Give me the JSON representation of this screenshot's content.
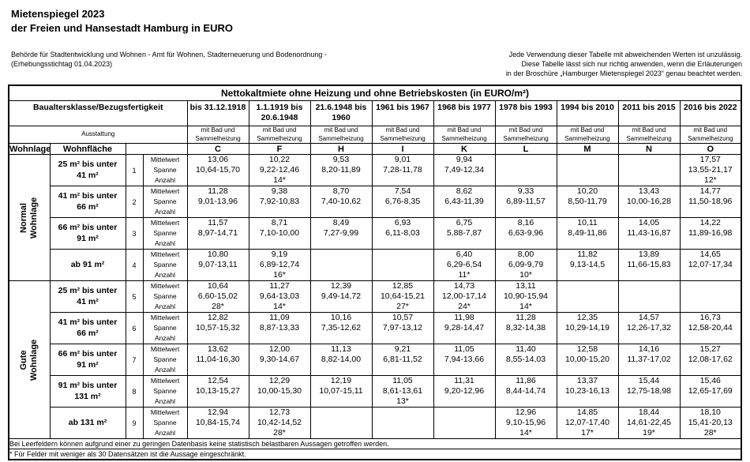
{
  "header": {
    "title_line1": "Mietenspiegel 2023",
    "title_line2": "der Freien und Hansestadt Hamburg in EURO",
    "authority_line1": "Behörde für Stadtentwicklung und Wohnen - Amt für Wohnen, Stadterneuerung und Bodenordnung -",
    "authority_line2": "(Erhebungsstichtag 01.04.2023)",
    "disclaimer_line1": "Jede Verwendung dieser Tabelle mit abweichenden Werten ist unzulässig.",
    "disclaimer_line2": "Diese Tabelle lässt sich nur richtig anwenden, wenn die Erläuterungen",
    "disclaimer_line3": "in der Broschüre „Hamburger Mietenspiegel 2023“ genau beachtet werden."
  },
  "table": {
    "title": "Nettokaltmiete ohne Heizung und ohne Betriebskosten (in EURO/m²)",
    "col_group_label": "Baualtersklasse/Bezugsfertigkeit",
    "equipment_label": "Ausstattung",
    "wohnlage_label": "Wohnlage",
    "flaeche_label": "Wohnfläche",
    "equipment_value": "mit Bad und Sammelheizung",
    "row_stat_labels": [
      "Mittelwert",
      "Spanne",
      "Anzahl"
    ],
    "columns": [
      {
        "letter": "C",
        "period": "bis 31.12.1918"
      },
      {
        "letter": "F",
        "period": "1.1.1919 bis 20.6.1948"
      },
      {
        "letter": "H",
        "period": "21.6.1948 bis 1960"
      },
      {
        "letter": "I",
        "period": "1961 bis 1967"
      },
      {
        "letter": "K",
        "period": "1968 bis 1977"
      },
      {
        "letter": "L",
        "period": "1978 bis 1993"
      },
      {
        "letter": "M",
        "period": "1994 bis 2010"
      },
      {
        "letter": "N",
        "period": "2011 bis 2015"
      },
      {
        "letter": "O",
        "period": "2016 bis 2022"
      }
    ],
    "groups": [
      {
        "label_line1": "Normal",
        "label_line2": "Wohnlage",
        "rows": [
          {
            "flaeche": "25 m² bis unter 41 m²",
            "num": "1",
            "cells": [
              [
                "13,06",
                "10,64-15,70",
                ""
              ],
              [
                "10,22",
                "9,22-12,46",
                "14*"
              ],
              [
                "9,53",
                "8,20-11,89",
                ""
              ],
              [
                "9,01",
                "7,28-11,78",
                ""
              ],
              [
                "9,94",
                "7,49-12,34",
                ""
              ],
              [
                "",
                "",
                ""
              ],
              [
                "",
                "",
                ""
              ],
              [
                "",
                "",
                ""
              ],
              [
                "17,57",
                "13,55-21,17",
                "12*"
              ]
            ]
          },
          {
            "flaeche": "41 m² bis unter 66 m²",
            "num": "2",
            "cells": [
              [
                "11,28",
                "9,01-13,96",
                ""
              ],
              [
                "9,38",
                "7,92-10,83",
                ""
              ],
              [
                "8,70",
                "7,40-10,62",
                ""
              ],
              [
                "7,54",
                "6,76-8,35",
                ""
              ],
              [
                "8,62",
                "6,43-11,39",
                ""
              ],
              [
                "9,33",
                "6,89-11,57",
                ""
              ],
              [
                "10,20",
                "8,50-11,79",
                ""
              ],
              [
                "13,43",
                "10,00-16,28",
                ""
              ],
              [
                "14,77",
                "11,50-18,96",
                ""
              ]
            ]
          },
          {
            "flaeche": "66 m² bis unter 91 m²",
            "num": "3",
            "cells": [
              [
                "11,57",
                "8,97-14,71",
                ""
              ],
              [
                "8,71",
                "7,10-10,00",
                ""
              ],
              [
                "8,49",
                "7,27-9,99",
                ""
              ],
              [
                "6,93",
                "6,11-8,03",
                ""
              ],
              [
                "6,75",
                "5,88-7,87",
                ""
              ],
              [
                "8,16",
                "6,63-9,96",
                ""
              ],
              [
                "10,11",
                "8,49-11,86",
                ""
              ],
              [
                "14,05",
                "11,43-16,87",
                ""
              ],
              [
                "14,22",
                "11,89-16,98",
                ""
              ]
            ]
          },
          {
            "flaeche": "ab 91 m²",
            "num": "4",
            "cells": [
              [
                "10,80",
                "9,07-13,11",
                ""
              ],
              [
                "9,19",
                "6,89-12,74",
                "16*"
              ],
              [
                "",
                "",
                ""
              ],
              [
                "",
                "",
                ""
              ],
              [
                "6,40",
                "6,29-6,54",
                "11*"
              ],
              [
                "8,00",
                "6,09-9,79",
                "10*"
              ],
              [
                "11,82",
                "9,13-14,5",
                ""
              ],
              [
                "13,89",
                "11,66-15,83",
                ""
              ],
              [
                "14,65",
                "12,07-17,34",
                ""
              ]
            ]
          }
        ]
      },
      {
        "label_line1": "Gute",
        "label_line2": "Wohnlage",
        "rows": [
          {
            "flaeche": "25 m² bis unter 41 m²",
            "num": "5",
            "cells": [
              [
                "10,64",
                "6,60-15,02",
                "28*"
              ],
              [
                "11,27",
                "9,64-13,03",
                "14*"
              ],
              [
                "12,39",
                "9,49-14,72",
                ""
              ],
              [
                "12,85",
                "10,64-15,21",
                "27*"
              ],
              [
                "14,73",
                "12,00-17,14",
                "24*"
              ],
              [
                "13,11",
                "10,90-15,94",
                "14*"
              ],
              [
                "",
                "",
                ""
              ],
              [
                "",
                "",
                ""
              ],
              [
                "",
                "",
                ""
              ]
            ]
          },
          {
            "flaeche": "41 m² bis unter 66 m²",
            "num": "6",
            "cells": [
              [
                "12,82",
                "10,57-15,32",
                ""
              ],
              [
                "11,09",
                "8,87-13,33",
                ""
              ],
              [
                "10,16",
                "7,35-12,62",
                ""
              ],
              [
                "10,57",
                "7,97-13,12",
                ""
              ],
              [
                "11,98",
                "9,28-14,47",
                ""
              ],
              [
                "11,28",
                "8,32-14,38",
                ""
              ],
              [
                "12,35",
                "10,29-14,19",
                ""
              ],
              [
                "14,57",
                "12,26-17,32",
                ""
              ],
              [
                "16,73",
                "12,58-20,44",
                ""
              ]
            ]
          },
          {
            "flaeche": "66 m² bis unter 91 m²",
            "num": "7",
            "cells": [
              [
                "13,62",
                "11,04-16,30",
                ""
              ],
              [
                "12,00",
                "9,30-14,67",
                ""
              ],
              [
                "11,13",
                "8,82-14,00",
                ""
              ],
              [
                "9,21",
                "6,81-11,52",
                ""
              ],
              [
                "11,05",
                "7,94-13,66",
                ""
              ],
              [
                "11,40",
                "8,55-14,03",
                ""
              ],
              [
                "12,58",
                "10,00-15,20",
                ""
              ],
              [
                "14,16",
                "11,37-17,02",
                ""
              ],
              [
                "15,27",
                "12,08-17,62",
                ""
              ]
            ]
          },
          {
            "flaeche": "91 m² bis unter 131 m²",
            "num": "8",
            "cells": [
              [
                "12,54",
                "10,13-15,27",
                ""
              ],
              [
                "12,29",
                "10,00-15,30",
                ""
              ],
              [
                "12,19",
                "10,07-15,11",
                ""
              ],
              [
                "11,05",
                "8,61-13,61",
                "13*"
              ],
              [
                "11,31",
                "9,20-12,96",
                ""
              ],
              [
                "11,86",
                "8,44-14,74",
                ""
              ],
              [
                "13,37",
                "10,23-16,13",
                ""
              ],
              [
                "15,44",
                "12,75-18,98",
                ""
              ],
              [
                "15,46",
                "12,65-17,69",
                ""
              ]
            ]
          },
          {
            "flaeche": "ab 131 m²",
            "num": "9",
            "cells": [
              [
                "12,94",
                "10,84-15,74",
                ""
              ],
              [
                "12,73",
                "10,42-14,52",
                "28*"
              ],
              [
                "",
                "",
                ""
              ],
              [
                "",
                "",
                ""
              ],
              [
                "",
                "",
                ""
              ],
              [
                "12,96",
                "9,10-15,96",
                "14*"
              ],
              [
                "14,85",
                "12,07-17,40",
                "17*"
              ],
              [
                "18,44",
                "14,61-22,45",
                "19*"
              ],
              [
                "18,10",
                "15,41-20,13",
                "28*"
              ]
            ]
          }
        ]
      }
    ]
  },
  "footnotes": {
    "line1": "Bei Leerfeldern können aufgrund einer zu geringen Datenbasis keine statistisch belastbaren Aussagen getroffen werden.",
    "line2": "* Für Felder mit weniger als 30 Datensätzen ist die Aussage eingeschränkt."
  }
}
